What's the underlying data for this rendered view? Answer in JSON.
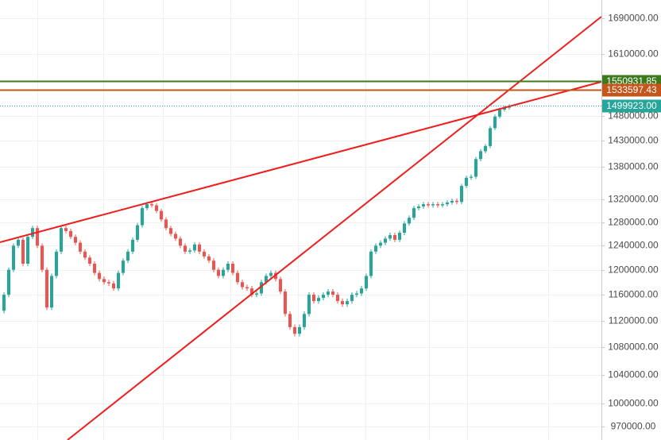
{
  "chart_data": {
    "type": "candlestick",
    "log_scale": true,
    "grid": true,
    "up_color": "#26a69a",
    "down_color": "#ef5350",
    "ylim": [
      952000,
      1732000
    ],
    "yticks": [
      {
        "value": 1690000,
        "label": "1690000.00"
      },
      {
        "value": 1610000,
        "label": "1610000.00"
      },
      {
        "value": 1480000,
        "label": "1480000.00"
      },
      {
        "value": 1430000,
        "label": "1430000.00"
      },
      {
        "value": 1380000,
        "label": "1380000.00"
      },
      {
        "value": 1320000,
        "label": "1320000.00"
      },
      {
        "value": 1280000,
        "label": "1280000.00"
      },
      {
        "value": 1240000,
        "label": "1240000.00"
      },
      {
        "value": 1200000,
        "label": "1200000.00"
      },
      {
        "value": 1160000,
        "label": "1160000.00"
      },
      {
        "value": 1120000,
        "label": "1120000.00"
      },
      {
        "value": 1080000,
        "label": "1080000.00"
      },
      {
        "value": 1040000,
        "label": "1040000.00"
      },
      {
        "value": 1000000,
        "label": "1000000.00"
      },
      {
        "value": 970000,
        "label": "970000.00"
      }
    ],
    "price_lines": [
      {
        "value": 1550931.85,
        "color": "#3d7a1c",
        "style": "solid"
      },
      {
        "value": 1533597.43,
        "color": "#c4551b",
        "style": "solid"
      },
      {
        "value": 1499923,
        "label": "1499923.00",
        "color": "#26a69a",
        "style": "dotted"
      }
    ],
    "series": {
      "open": [
        1135000,
        1160000,
        1200000,
        1240000,
        1250000,
        1210000,
        1255000,
        1270000,
        1240000,
        1200000,
        1140000,
        1190000,
        1230000,
        1270000,
        1265000,
        1255000,
        1245000,
        1230000,
        1220000,
        1210000,
        1195000,
        1185000,
        1180000,
        1178000,
        1170000,
        1195000,
        1215000,
        1230000,
        1250000,
        1275000,
        1305000,
        1312000,
        1310000,
        1300000,
        1285000,
        1270000,
        1260000,
        1252000,
        1240000,
        1230000,
        1232000,
        1242000,
        1230000,
        1222000,
        1215000,
        1200000,
        1190000,
        1200000,
        1210000,
        1195000,
        1180000,
        1172000,
        1170000,
        1160000,
        1162000,
        1180000,
        1190000,
        1195000,
        1185000,
        1165000,
        1130000,
        1110000,
        1100000,
        1110000,
        1130000,
        1160000,
        1150000,
        1155000,
        1160000,
        1165000,
        1160000,
        1150000,
        1145000,
        1150000,
        1160000,
        1162000,
        1170000,
        1190000,
        1230000,
        1240000,
        1245000,
        1252000,
        1258000,
        1250000,
        1262000,
        1278000,
        1288000,
        1305000,
        1308000,
        1312000,
        1310000,
        1312000,
        1310000,
        1312000,
        1315000,
        1318000,
        1316000,
        1345000,
        1360000,
        1362000,
        1395000,
        1410000,
        1420000,
        1455000,
        1478000,
        1492000,
        1496000
      ],
      "high": [
        1164000,
        1204000,
        1244000,
        1254000,
        1254000,
        1259000,
        1274000,
        1274000,
        1244000,
        1204000,
        1194000,
        1234000,
        1274000,
        1274000,
        1269000,
        1259000,
        1249000,
        1234000,
        1224000,
        1214000,
        1199000,
        1189000,
        1184000,
        1182000,
        1199000,
        1219000,
        1234000,
        1254000,
        1279000,
        1309000,
        1316000,
        1316000,
        1314000,
        1304000,
        1289000,
        1274000,
        1264000,
        1256000,
        1244000,
        1236000,
        1246000,
        1246000,
        1234000,
        1226000,
        1219000,
        1204000,
        1204000,
        1214000,
        1214000,
        1199000,
        1184000,
        1176000,
        1174000,
        1166000,
        1184000,
        1194000,
        1199000,
        1199000,
        1189000,
        1169000,
        1134000,
        1114000,
        1114000,
        1134000,
        1164000,
        1164000,
        1159000,
        1164000,
        1169000,
        1169000,
        1164000,
        1154000,
        1154000,
        1164000,
        1166000,
        1174000,
        1194000,
        1234000,
        1244000,
        1249000,
        1256000,
        1262000,
        1262000,
        1266000,
        1282000,
        1292000,
        1309000,
        1312000,
        1316000,
        1316000,
        1316000,
        1316000,
        1316000,
        1319000,
        1322000,
        1322000,
        1349000,
        1364000,
        1366000,
        1399000,
        1414000,
        1424000,
        1459000,
        1482000,
        1496000,
        1500000,
        1503000
      ],
      "low": [
        1131000,
        1156000,
        1196000,
        1236000,
        1206000,
        1206000,
        1251000,
        1236000,
        1196000,
        1136000,
        1136000,
        1186000,
        1226000,
        1261000,
        1251000,
        1241000,
        1226000,
        1216000,
        1206000,
        1191000,
        1181000,
        1176000,
        1174000,
        1166000,
        1166000,
        1191000,
        1211000,
        1226000,
        1246000,
        1271000,
        1301000,
        1306000,
        1296000,
        1281000,
        1266000,
        1256000,
        1248000,
        1236000,
        1226000,
        1226000,
        1228000,
        1226000,
        1218000,
        1211000,
        1196000,
        1186000,
        1186000,
        1196000,
        1191000,
        1176000,
        1168000,
        1166000,
        1156000,
        1156000,
        1158000,
        1176000,
        1186000,
        1181000,
        1161000,
        1126000,
        1106000,
        1096000,
        1096000,
        1106000,
        1126000,
        1146000,
        1146000,
        1151000,
        1156000,
        1156000,
        1146000,
        1141000,
        1141000,
        1146000,
        1156000,
        1158000,
        1166000,
        1186000,
        1226000,
        1236000,
        1241000,
        1248000,
        1246000,
        1246000,
        1258000,
        1274000,
        1284000,
        1301000,
        1304000,
        1306000,
        1306000,
        1306000,
        1306000,
        1308000,
        1311000,
        1312000,
        1312000,
        1341000,
        1356000,
        1358000,
        1391000,
        1406000,
        1416000,
        1451000,
        1474000,
        1488000,
        1492000
      ],
      "close": [
        1160000,
        1200000,
        1240000,
        1250000,
        1210000,
        1255000,
        1270000,
        1240000,
        1200000,
        1140000,
        1190000,
        1230000,
        1270000,
        1265000,
        1255000,
        1245000,
        1230000,
        1220000,
        1210000,
        1195000,
        1185000,
        1180000,
        1178000,
        1170000,
        1195000,
        1215000,
        1230000,
        1250000,
        1275000,
        1305000,
        1312000,
        1310000,
        1300000,
        1285000,
        1270000,
        1260000,
        1252000,
        1240000,
        1230000,
        1232000,
        1242000,
        1230000,
        1222000,
        1215000,
        1200000,
        1190000,
        1200000,
        1210000,
        1195000,
        1180000,
        1172000,
        1170000,
        1160000,
        1162000,
        1180000,
        1190000,
        1195000,
        1185000,
        1165000,
        1130000,
        1110000,
        1100000,
        1110000,
        1130000,
        1160000,
        1150000,
        1155000,
        1160000,
        1165000,
        1160000,
        1150000,
        1145000,
        1150000,
        1160000,
        1162000,
        1170000,
        1190000,
        1230000,
        1240000,
        1245000,
        1252000,
        1258000,
        1250000,
        1262000,
        1278000,
        1288000,
        1305000,
        1308000,
        1312000,
        1310000,
        1312000,
        1310000,
        1312000,
        1315000,
        1318000,
        1316000,
        1345000,
        1360000,
        1362000,
        1395000,
        1410000,
        1420000,
        1455000,
        1478000,
        1492000,
        1496000,
        1499923
      ]
    }
  }
}
